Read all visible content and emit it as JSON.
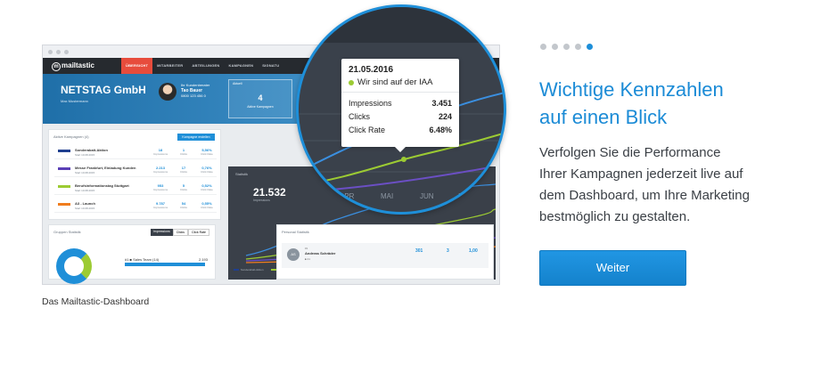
{
  "carousel": {
    "pages": 5,
    "active_index": 4
  },
  "headline": {
    "line1": "Wichtige Kennzahlen",
    "line2": "auf einen Blick"
  },
  "body": {
    "line1": "Verfolgen Sie die Performance",
    "line2": "Ihrer Kampagnen jederzeit live auf",
    "line3": "dem Dashboard, um Ihre Marketing",
    "line4": "bestmöglich zu gestalten."
  },
  "button": {
    "label": "Weiter"
  },
  "caption": "Das Mailtastic-Dashboard",
  "colors": {
    "accent": "#1e8fd9",
    "nav_active": "#e74c3c",
    "event_dot": "#9ccb33"
  },
  "mockup": {
    "brand": "mailtastic",
    "nav": [
      "ÜBERSICHT",
      "MITARBEITER",
      "ABTEILUNGEN",
      "KAMPAGNEN",
      "SIGNATU"
    ],
    "company": {
      "name": "NETSTAG GmbH",
      "sub": "Max Mustermann"
    },
    "contact": {
      "role": "Ihr Kundenberater",
      "name": "Tao Bauer",
      "phone": "0800 123 456 0"
    },
    "tile": {
      "label": "Aktuell",
      "value": "4",
      "caption": "Aktive Kampagnen"
    },
    "campaigns": {
      "title": "Aktive Kampagnen (4)",
      "button": "Kampagne erstellen",
      "rows": [
        {
          "name": "Sonderabalt-Aktion",
          "date": "Start 10.08.2015",
          "impressions": "18",
          "clicks": "1",
          "rate": "5,56%",
          "color": "#1f3f8f"
        },
        {
          "name": "Messe Frankfurt, Einladung Kunden",
          "date": "Start 10.08.2015",
          "impressions": "2.213",
          "clicks": "17",
          "rate": "0,76%",
          "color": "#5b3fb6"
        },
        {
          "name": "Berufsinformationstag Stuttgart",
          "date": "Start 10.08.2015",
          "impressions": "953",
          "clicks": "5",
          "rate": "0,52%",
          "color": "#9ccb33"
        },
        {
          "name": "A3 - Launch",
          "date": "Start 10.08.2015",
          "impressions": "9.787",
          "clicks": "54",
          "rate": "0,55%",
          "color": "#f07d1e"
        }
      ],
      "stat_labels": {
        "impressions": "Impressions",
        "clicks": "Clicks",
        "rate": "Click Rate"
      }
    },
    "stat_chart": {
      "title": "Statistik",
      "big_value": "21.532",
      "big_caption": "Impressions",
      "legend": [
        "Sonderabalt-Aktion",
        "Messe Frankfurt",
        "Berufsinformationstag Stuttgart",
        "A3 - Launch"
      ]
    },
    "gruppen": {
      "title": "Gruppen Statistik",
      "tabs": [
        "Impressions",
        "Clicks",
        "Click Rate"
      ],
      "row_label": "#1 ■ Sales Team (14)",
      "row_value": "2.193"
    },
    "personal": {
      "title": "Personal Statistik",
      "initials": "AS",
      "rank": "#1",
      "name": "Andreas Schräder",
      "sub": "■ 41",
      "impressions": "301",
      "clicks": "3",
      "rate": "1,00"
    }
  },
  "lens": {
    "tooltip": {
      "date": "21.05.2016",
      "event": "Wir sind auf der IAA",
      "rows": [
        {
          "label": "Impressions",
          "value": "3.451"
        },
        {
          "label": "Clicks",
          "value": "224"
        },
        {
          "label": "Click Rate",
          "value": "6.48%"
        }
      ]
    },
    "months": [
      "APR",
      "MAI",
      "JUN",
      "JUL"
    ]
  }
}
